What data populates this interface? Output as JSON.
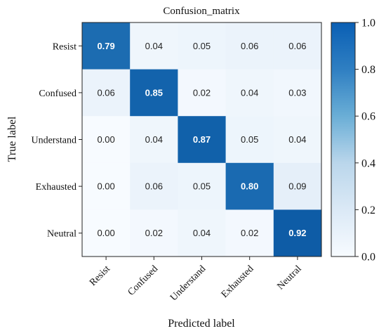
{
  "chart_data": {
    "type": "heatmap",
    "title": "Confusion_matrix",
    "xlabel": "Predicted label",
    "ylabel": "True label",
    "x_categories": [
      "Resist",
      "Confused",
      "Understand",
      "Exhausted",
      "Neutral"
    ],
    "y_categories": [
      "Resist",
      "Confused",
      "Understand",
      "Exhausted",
      "Neutral"
    ],
    "values": [
      [
        0.79,
        0.04,
        0.05,
        0.06,
        0.06
      ],
      [
        0.06,
        0.85,
        0.02,
        0.04,
        0.03
      ],
      [
        0.0,
        0.04,
        0.87,
        0.05,
        0.04
      ],
      [
        0.0,
        0.06,
        0.05,
        0.8,
        0.09
      ],
      [
        0.0,
        0.02,
        0.04,
        0.02,
        0.92
      ]
    ],
    "cell_labels": [
      [
        "0.79",
        "0.04",
        "0.05",
        "0.06",
        "0.06"
      ],
      [
        "0.06",
        "0.85",
        "0.02",
        "0.04",
        "0.03"
      ],
      [
        "0.00",
        "0.04",
        "0.87",
        "0.05",
        "0.04"
      ],
      [
        "0.00",
        "0.06",
        "0.05",
        "0.80",
        "0.09"
      ],
      [
        "0.00",
        "0.02",
        "0.04",
        "0.02",
        "0.92"
      ]
    ],
    "colorbar": {
      "range": [
        0.0,
        1.0
      ],
      "ticks": [
        0.0,
        0.2,
        0.4,
        0.6,
        0.8,
        1.0
      ],
      "tick_labels": [
        "0.0",
        "0.2",
        "0.4",
        "0.6",
        "0.8",
        "1.0"
      ]
    },
    "colormap": "Blues",
    "colors": {
      "low": "#f7fbff",
      "high": "#0a5fb4"
    }
  }
}
